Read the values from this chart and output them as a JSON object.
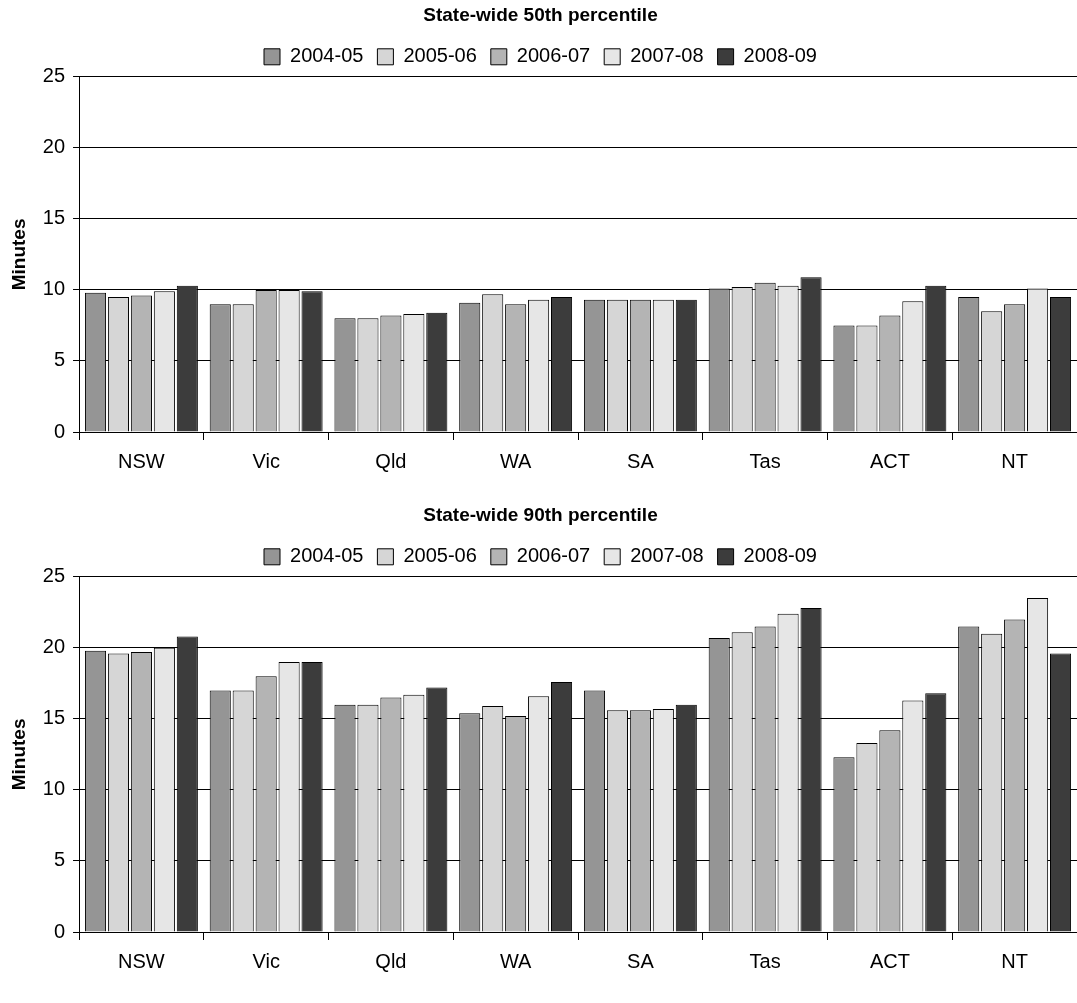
{
  "chart_data": [
    {
      "type": "bar",
      "title": "State-wide 50th percentile",
      "ylabel": "Minutes",
      "categories": [
        "NSW",
        "Vic",
        "Qld",
        "WA",
        "SA",
        "Tas",
        "ACT",
        "NT"
      ],
      "series": [
        {
          "name": "2004-05",
          "color": "#959595",
          "values": [
            9.8,
            9.0,
            8.0,
            9.1,
            9.3,
            10.1,
            7.5,
            9.5
          ]
        },
        {
          "name": "2005-06",
          "color": "#d6d6d6",
          "values": [
            9.5,
            9.0,
            8.0,
            9.7,
            9.3,
            10.2,
            7.5,
            8.5
          ]
        },
        {
          "name": "2006-07",
          "color": "#b4b4b4",
          "values": [
            9.6,
            10.0,
            8.2,
            9.0,
            9.3,
            10.5,
            8.2,
            9.0
          ]
        },
        {
          "name": "2007-08",
          "color": "#e6e6e6",
          "values": [
            9.9,
            10.0,
            8.3,
            9.3,
            9.3,
            10.3,
            9.2,
            10.1
          ]
        },
        {
          "name": "2008-09",
          "color": "#3c3c3c",
          "values": [
            10.3,
            9.9,
            8.4,
            9.5,
            9.3,
            10.9,
            10.3,
            9.5
          ]
        }
      ],
      "ylim": [
        0,
        25
      ],
      "yticks": [
        0,
        5,
        10,
        15,
        20,
        25
      ],
      "grid": "y",
      "legend": "top"
    },
    {
      "type": "bar",
      "title": "State-wide 90th percentile",
      "ylabel": "Minutes",
      "categories": [
        "NSW",
        "Vic",
        "Qld",
        "WA",
        "SA",
        "Tas",
        "ACT",
        "NT"
      ],
      "series": [
        {
          "name": "2004-05",
          "color": "#959595",
          "values": [
            19.8,
            17.0,
            16.0,
            15.4,
            17.0,
            20.7,
            12.3,
            21.5
          ]
        },
        {
          "name": "2005-06",
          "color": "#d6d6d6",
          "values": [
            19.6,
            17.0,
            16.0,
            15.9,
            15.6,
            21.1,
            13.3,
            21.0
          ]
        },
        {
          "name": "2006-07",
          "color": "#b4b4b4",
          "values": [
            19.7,
            18.0,
            16.5,
            15.2,
            15.6,
            21.5,
            14.2,
            22.0
          ]
        },
        {
          "name": "2007-08",
          "color": "#e6e6e6",
          "values": [
            20.0,
            19.0,
            16.7,
            16.6,
            15.7,
            22.4,
            16.3,
            23.5
          ]
        },
        {
          "name": "2008-09",
          "color": "#3c3c3c",
          "values": [
            20.8,
            19.0,
            17.2,
            17.6,
            16.0,
            22.8,
            16.8,
            19.6
          ]
        }
      ],
      "ylim": [
        0,
        25
      ],
      "yticks": [
        0,
        5,
        10,
        15,
        20,
        25
      ],
      "grid": "y",
      "legend": "top"
    }
  ]
}
